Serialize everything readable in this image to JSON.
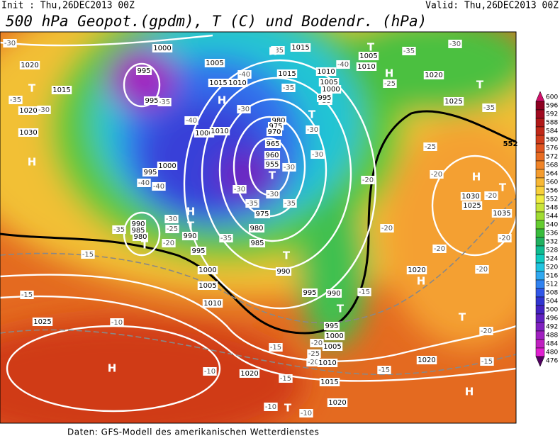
{
  "header": {
    "init": "Init : Thu,26DEC2013 00Z",
    "valid": "Valid: Thu,26DEC2013 00Z",
    "title": "500 hPa Geopot.(gpdm), T (C) und Bodendr. (hPa)"
  },
  "footer": "Daten: GFS-Modell des amerikanischen Wetterdienstes",
  "colorbar": {
    "labels": [
      600,
      596,
      592,
      588,
      584,
      580,
      576,
      572,
      568,
      564,
      560,
      556,
      552,
      548,
      544,
      540,
      536,
      532,
      528,
      524,
      520,
      516,
      512,
      508,
      504,
      500,
      496,
      492,
      488,
      484,
      480,
      476
    ],
    "colors": [
      "#d0106a",
      "#8c0020",
      "#a00a20",
      "#b01818",
      "#c02818",
      "#d03c1c",
      "#e05520",
      "#e86c22",
      "#f08428",
      "#f49c2e",
      "#f8b834",
      "#f8d03a",
      "#f0ec40",
      "#c8e43a",
      "#a0dc32",
      "#64cc30",
      "#38bc3c",
      "#20b060",
      "#10bc90",
      "#10ccc0",
      "#20c4e0",
      "#30a8f0",
      "#3082f0",
      "#3056e8",
      "#3034d0",
      "#4222c2",
      "#6020c0",
      "#8020c0",
      "#a020c0",
      "#c020c0",
      "#e020d0",
      "#500060"
    ]
  },
  "map": {
    "contour_label": "552",
    "centers": [
      "H",
      "T",
      "H",
      "H",
      "H",
      "T",
      "T",
      "T",
      "H",
      "T",
      "T",
      "T",
      "T",
      "H",
      "T",
      "H",
      "T",
      "H",
      "H",
      "T",
      "T"
    ],
    "isobar_labels": [
      "1000",
      "995",
      "1015",
      "1020",
      "1030",
      "1020",
      "995",
      "1005",
      "1015",
      "1010",
      "1000",
      "1010",
      "1000",
      "995",
      "990",
      "985",
      "980",
      "990",
      "995",
      "1000",
      "1005",
      "1010",
      "975",
      "980",
      "985",
      "980",
      "975",
      "970",
      "965",
      "960",
      "955",
      "1015",
      "1010",
      "1005",
      "1000",
      "995",
      "1015",
      "1005",
      "1010",
      "1020",
      "1025",
      "1030",
      "1025",
      "1035",
      "1020",
      "990",
      "995",
      "990",
      "995",
      "1000",
      "1005",
      "1010",
      "1020",
      "1015",
      "1020",
      "1020",
      "1025"
    ],
    "temperature_labels": [
      "-30",
      "-35",
      "-40",
      "-35",
      "-30",
      "-35",
      "-30",
      "-35",
      "-40",
      "-40",
      "-35",
      "-30",
      "-35",
      "-25",
      "-35",
      "-30",
      "-30",
      "-30",
      "-40",
      "-40",
      "-30",
      "-35",
      "-30",
      "-35",
      "-30",
      "-25",
      "-35",
      "-20",
      "-35",
      "-20",
      "-20",
      "-20",
      "-20",
      "-20",
      "-20",
      "-20",
      "-20",
      "-25",
      "-15",
      "-15",
      "-15",
      "-10",
      "-15",
      "-20",
      "-25",
      "-20",
      "-15",
      "-15",
      "-15",
      "-10",
      "-10",
      "-10"
    ]
  }
}
